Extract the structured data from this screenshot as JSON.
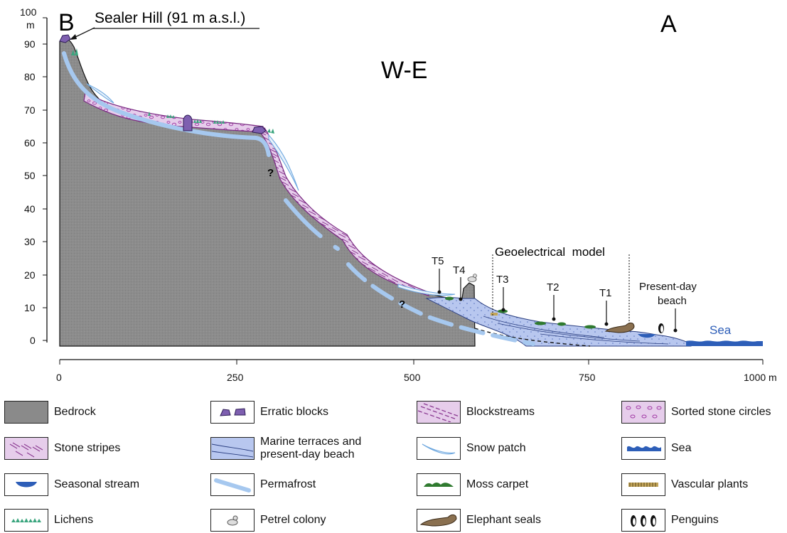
{
  "site": {
    "name": "Sealer Hill (91 m a.s.l.)"
  },
  "panel_letters": {
    "left": "B",
    "right": "A"
  },
  "section": {
    "direction": "W-E"
  },
  "axes": {
    "y_unit": "m",
    "y_ticks": [
      "100",
      "90",
      "80",
      "70",
      "60",
      "50",
      "40",
      "30",
      "20",
      "10",
      "0"
    ],
    "x_ticks": [
      "0",
      "250",
      "500",
      "750",
      "1000 m"
    ]
  },
  "annotations": {
    "question_marks": [
      "?",
      "?"
    ],
    "geoelectrical_model": "Geoelectrical  model",
    "present_beach": [
      "Present-day",
      "beach"
    ],
    "sea": "Sea",
    "terraces": [
      "T5",
      "T4",
      "T3",
      "T2",
      "T1"
    ]
  },
  "colors": {
    "bedrock": "#8a8a8a",
    "stone_cover": "#e4c8ea",
    "stone_line": "#7a2a82",
    "marine": "#b7c6ee",
    "permafrost": "#a6c8ef",
    "sea": "#2d5eb8",
    "erratic": "#7e5fb0",
    "moss": "#2f7a2f",
    "lichen": "#3aa57e",
    "seal": "#8a7050"
  },
  "legend": [
    {
      "icon": "bedrock-swatch-icon",
      "label": "Bedrock"
    },
    {
      "icon": "erratic-blocks-icon",
      "label": "Erratic blocks"
    },
    {
      "icon": "blockstreams-icon",
      "label": "Blockstreams"
    },
    {
      "icon": "sorted-stone-circles-icon",
      "label": "Sorted stone circles"
    },
    {
      "icon": "stone-stripes-icon",
      "label": "Stone stripes"
    },
    {
      "icon": "marine-terraces-icon",
      "label": "Marine terraces and present-day beach"
    },
    {
      "icon": "snow-patch-icon",
      "label": "Snow patch"
    },
    {
      "icon": "sea-icon",
      "label": "Sea"
    },
    {
      "icon": "seasonal-stream-icon",
      "label": "Seasonal stream"
    },
    {
      "icon": "permafrost-icon",
      "label": "Permafrost"
    },
    {
      "icon": "moss-carpet-icon",
      "label": "Moss carpet"
    },
    {
      "icon": "vascular-plants-icon",
      "label": "Vascular plants"
    },
    {
      "icon": "lichens-icon",
      "label": "Lichens"
    },
    {
      "icon": "petrel-colony-icon",
      "label": "Petrel colony"
    },
    {
      "icon": "elephant-seals-icon",
      "label": "Elephant seals"
    },
    {
      "icon": "penguins-icon",
      "label": "Penguins"
    }
  ]
}
